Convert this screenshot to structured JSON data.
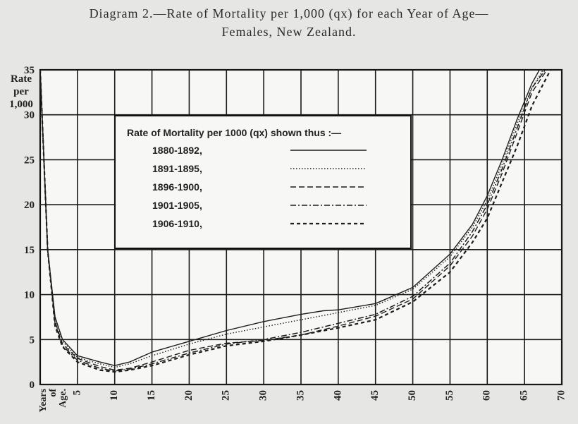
{
  "title_line1": "Diagram 2.—Rate of Mortality per 1,000 (qx) for each Year of Age—",
  "title_line2": "Females, New Zealand.",
  "chart_data": {
    "type": "line",
    "title": "Diagram 2.—Rate of Mortality per 1,000 (qx) for each Year of Age— Females, New Zealand.",
    "ylabel_lines": [
      "Rate",
      "per",
      "1,000"
    ],
    "xlabel_lines": [
      "Years",
      "of",
      "Age."
    ],
    "xlim": [
      0,
      70
    ],
    "ylim": [
      0,
      35
    ],
    "x_ticks": [
      5,
      10,
      15,
      20,
      25,
      30,
      35,
      40,
      45,
      50,
      55,
      60,
      65,
      70
    ],
    "y_ticks": [
      0,
      5,
      10,
      15,
      20,
      25,
      30,
      35
    ],
    "grid": true,
    "legend_title": "Rate of Mortality per 1000 (qx) shown thus :—",
    "legend_placement": "upper-center",
    "series": [
      {
        "name": "1880-1892,",
        "dash": "solid",
        "x": [
          0,
          0.5,
          1,
          2,
          3,
          5,
          8,
          10,
          12,
          15,
          20,
          25,
          30,
          35,
          38,
          40,
          45,
          50,
          55,
          58,
          60,
          62,
          64,
          66,
          67
        ],
        "y": [
          35,
          25,
          15,
          7.5,
          5,
          3.2,
          2.5,
          2.1,
          2.5,
          3.6,
          4.8,
          6,
          7,
          7.8,
          8.2,
          8.3,
          9,
          10.8,
          14.5,
          17.8,
          21,
          25,
          29.5,
          33.5,
          35
        ]
      },
      {
        "name": "1891-1895,",
        "dash": "dotted",
        "x": [
          0,
          0.5,
          1,
          2,
          3,
          5,
          8,
          10,
          12,
          15,
          20,
          25,
          30,
          35,
          40,
          45,
          50,
          55,
          58,
          60,
          62,
          64,
          66,
          67.5
        ],
        "y": [
          35,
          25,
          15,
          7.5,
          4.8,
          3,
          2.3,
          1.9,
          2.3,
          3.2,
          4.5,
          5.6,
          6.4,
          7.2,
          8,
          8.8,
          10.6,
          14.2,
          17.5,
          20.5,
          24.5,
          29,
          33,
          35
        ]
      },
      {
        "name": "1896-1900,",
        "dash": "dashed",
        "x": [
          0,
          0.5,
          1,
          2,
          3,
          5,
          8,
          10,
          12,
          15,
          20,
          25,
          30,
          35,
          40,
          45,
          50,
          55,
          58,
          60,
          62,
          64,
          66,
          68
        ],
        "y": [
          35,
          25,
          15,
          7,
          4.5,
          2.9,
          2,
          1.6,
          1.8,
          2.5,
          3.8,
          4.6,
          4.9,
          5.5,
          6.5,
          7.6,
          9.5,
          13.2,
          16.5,
          19.5,
          23.5,
          28,
          32.5,
          35
        ]
      },
      {
        "name": "1901-1905,",
        "dash": "dashdot",
        "x": [
          0,
          0.5,
          1,
          2,
          3,
          5,
          8,
          10,
          12,
          15,
          20,
          25,
          30,
          35,
          40,
          45,
          50,
          55,
          58,
          60,
          62,
          64,
          66,
          67.8
        ],
        "y": [
          35,
          25,
          15,
          6.8,
          4.3,
          2.7,
          1.8,
          1.5,
          1.7,
          2.3,
          3.5,
          4.5,
          5,
          5.8,
          6.8,
          7.8,
          9.8,
          13.5,
          17,
          20,
          24,
          28.5,
          33,
          35
        ]
      },
      {
        "name": "1906-1910,",
        "dash": "dashed-heavy",
        "x": [
          0,
          0.5,
          1,
          2,
          3,
          5,
          8,
          10,
          12,
          15,
          20,
          25,
          30,
          35,
          40,
          45,
          50,
          55,
          58,
          60,
          62,
          64,
          66,
          68.5
        ],
        "y": [
          35,
          25,
          15,
          6.5,
          4.2,
          2.5,
          1.6,
          1.4,
          1.6,
          2.1,
          3.3,
          4.3,
          4.8,
          5.5,
          6.3,
          7.2,
          9.2,
          12.5,
          15.8,
          18.5,
          22.5,
          26.5,
          31,
          35
        ]
      }
    ]
  }
}
